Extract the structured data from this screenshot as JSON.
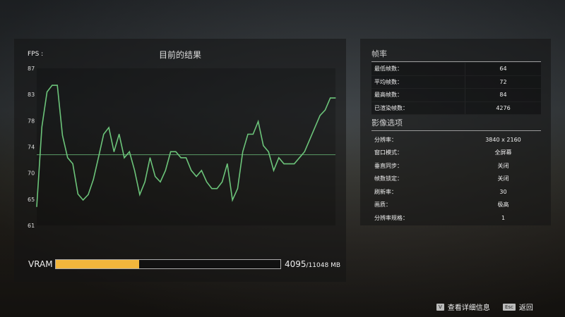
{
  "chart_data": {
    "type": "line",
    "title": "目前的结果",
    "ylabel": "FPS :",
    "yticks": [
      "87",
      "83",
      "78",
      "74",
      "70",
      "65",
      "61"
    ],
    "ylim": [
      61,
      87
    ],
    "average_line": 72.7,
    "grid": false,
    "line_color": "#6cc47a",
    "values": [
      64.1,
      77.3,
      83.1,
      84.2,
      84.2,
      75.9,
      72.2,
      71.2,
      66.2,
      65.2,
      66.1,
      68.6,
      72.3,
      76.1,
      77.2,
      73.2,
      76.1,
      72.2,
      73.2,
      70.1,
      66.1,
      68.2,
      72.2,
      69.1,
      68.2,
      70.1,
      73.2,
      73.2,
      72.2,
      72.2,
      70.1,
      69.1,
      70.1,
      68.2,
      67.1,
      67.1,
      68.2,
      71.2,
      65.2,
      67.1,
      73.2,
      76.1,
      76.1,
      78.2,
      74.2,
      73.2,
      70.1,
      72.2,
      71.2,
      71.2,
      71.2,
      72.2,
      73.2,
      75.2,
      77.2,
      79.2,
      80.1,
      82.1,
      82.1
    ]
  },
  "vram": {
    "label": "VRAM",
    "used": "4095",
    "total": "/11048 MB",
    "fraction": 0.3707,
    "color": "#f2b63c"
  },
  "framerate": {
    "title": "帧率",
    "rows": [
      {
        "k": "最低帧数：",
        "v": "64"
      },
      {
        "k": "平均帧数：",
        "v": "72"
      },
      {
        "k": "最高帧数：",
        "v": "84"
      },
      {
        "k": "已渲染帧数：",
        "v": "4276"
      }
    ]
  },
  "video": {
    "title": "影像选项",
    "rows": [
      {
        "k": "分辨率：",
        "v": "3840 x 2160"
      },
      {
        "k": "窗口模式：",
        "v": "全屏幕"
      },
      {
        "k": "垂直同步：",
        "v": "关闭"
      },
      {
        "k": "帧数锁定：",
        "v": "关闭"
      },
      {
        "k": "刷新率：",
        "v": "30"
      },
      {
        "k": "画质：",
        "v": "极高"
      },
      {
        "k": "分辨率规格：",
        "v": "1"
      }
    ]
  },
  "footer": {
    "details_key": "V",
    "details_label": "查看详细信息",
    "back_key": "Esc",
    "back_label": "返回"
  }
}
